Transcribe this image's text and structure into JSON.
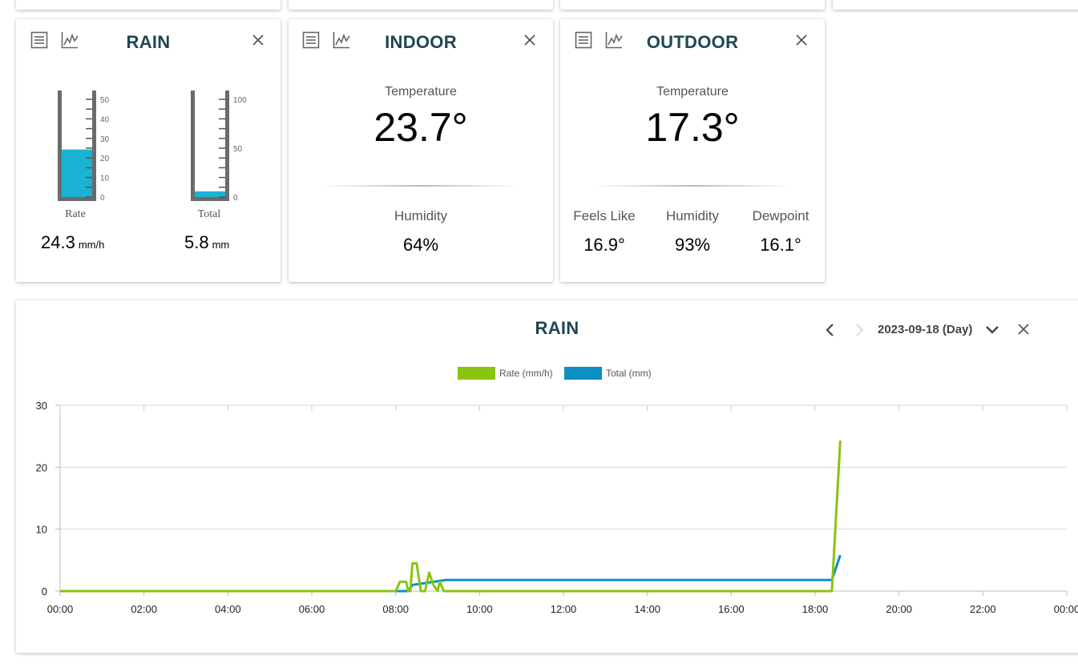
{
  "rain_card": {
    "title": "RAIN",
    "rate_label": "Rate",
    "total_label": "Total",
    "rate_value": "24.3",
    "rate_unit": "mm/h",
    "total_value": "5.8",
    "total_unit": "mm",
    "rate_gauge": {
      "max": 50,
      "ticks": [
        "50",
        "40",
        "30",
        "20",
        "10",
        "0"
      ],
      "level": 24.3,
      "color": "#1ab3d3"
    },
    "total_gauge": {
      "max": 100,
      "ticks": [
        "100",
        "50",
        "0"
      ],
      "level": 5.8,
      "color": "#1ab3d3"
    }
  },
  "indoor_card": {
    "title": "INDOOR",
    "temperature_label": "Temperature",
    "temperature_value": "23.7°",
    "humidity_label": "Humidity",
    "humidity_value": "64%"
  },
  "outdoor_card": {
    "title": "OUTDOOR",
    "temperature_label": "Temperature",
    "temperature_value": "17.3°",
    "feels_like_label": "Feels Like",
    "feels_like_value": "16.9°",
    "humidity_label": "Humidity",
    "humidity_value": "93%",
    "dewpoint_label": "Dewpoint",
    "dewpoint_value": "16.1°"
  },
  "chart_panel": {
    "title": "RAIN",
    "date_label": "2023-09-18 (Day)"
  },
  "icons": [
    "list-icon",
    "chart-icon",
    "close-icon",
    "chevron-left-icon",
    "chevron-right-icon",
    "chevron-down-icon"
  ],
  "colors": {
    "title": "#1e4750",
    "rate": "#8ac40f",
    "total": "#0b8fc4",
    "gauge_fill": "#1ab3d3"
  },
  "chart_data": {
    "type": "line",
    "title": "RAIN",
    "x_ticks": [
      "00:00",
      "02:00",
      "04:00",
      "06:00",
      "08:00",
      "10:00",
      "12:00",
      "14:00",
      "16:00",
      "18:00",
      "20:00",
      "22:00",
      "00:00"
    ],
    "y_ticks": [
      "0",
      "10",
      "20",
      "30"
    ],
    "ylim": [
      0,
      30
    ],
    "xlim_hours": [
      0,
      24
    ],
    "grid": true,
    "legend": "top-center",
    "series": [
      {
        "name": "Rate (mm/h)",
        "color": "#8ac40f",
        "points": [
          [
            0,
            0
          ],
          [
            8.0,
            0
          ],
          [
            8.1,
            1.5
          ],
          [
            8.25,
            1.5
          ],
          [
            8.3,
            0
          ],
          [
            8.35,
            0
          ],
          [
            8.4,
            4.5
          ],
          [
            8.5,
            4.5
          ],
          [
            8.6,
            0
          ],
          [
            8.7,
            0
          ],
          [
            8.8,
            3
          ],
          [
            8.9,
            1
          ],
          [
            9.0,
            0
          ],
          [
            9.05,
            1.5
          ],
          [
            9.15,
            0
          ],
          [
            18.4,
            0
          ],
          [
            18.6,
            24.3
          ]
        ]
      },
      {
        "name": "Total (mm)",
        "color": "#0b8fc4",
        "points": [
          [
            8.0,
            0
          ],
          [
            8.3,
            0
          ],
          [
            8.4,
            1
          ],
          [
            9.0,
            1.6
          ],
          [
            9.2,
            1.8
          ],
          [
            18.4,
            1.8
          ],
          [
            18.6,
            5.8
          ]
        ]
      }
    ]
  }
}
